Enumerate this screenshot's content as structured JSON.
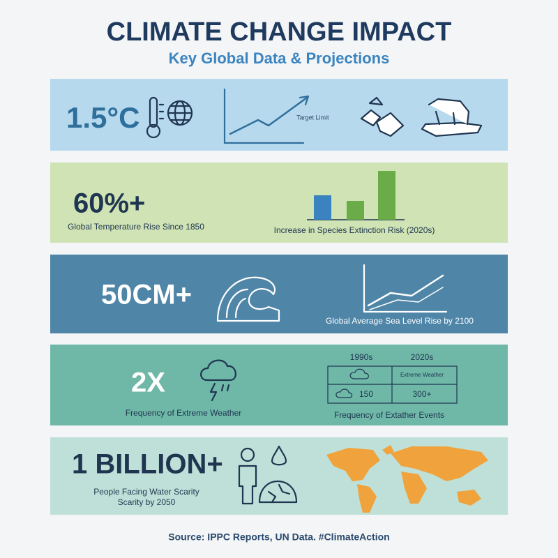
{
  "header": {
    "title": "CLIMATE CHANGE IMPACT",
    "subtitle": "Key Global Data & Projections"
  },
  "panels": [
    {
      "figure": "1.5°C",
      "annotation": "Target Limit"
    },
    {
      "figure": "60%+",
      "caption": "Global Temperature Rise Since 1850",
      "chart_caption": "Increase in Species Extinction Risk (2020s)"
    },
    {
      "figure": "50CM+",
      "caption": "Global Average Sea Level Rise by 2100"
    },
    {
      "figure": "2X",
      "caption": "Frequency of Extreme Weather",
      "table": {
        "headers": [
          "1990s",
          "2020s"
        ],
        "note": "Extreme Weather",
        "rows": [
          [
            "150",
            "300+"
          ]
        ]
      },
      "table_caption": "Frequency of Extather Events"
    },
    {
      "figure": "1 BILLION+",
      "caption_lines": [
        "People Facing Water Scarity",
        "Scarity by 2050"
      ]
    }
  ],
  "footer": "Source: IPPC Reports, UN Data. #ClimateAction"
}
